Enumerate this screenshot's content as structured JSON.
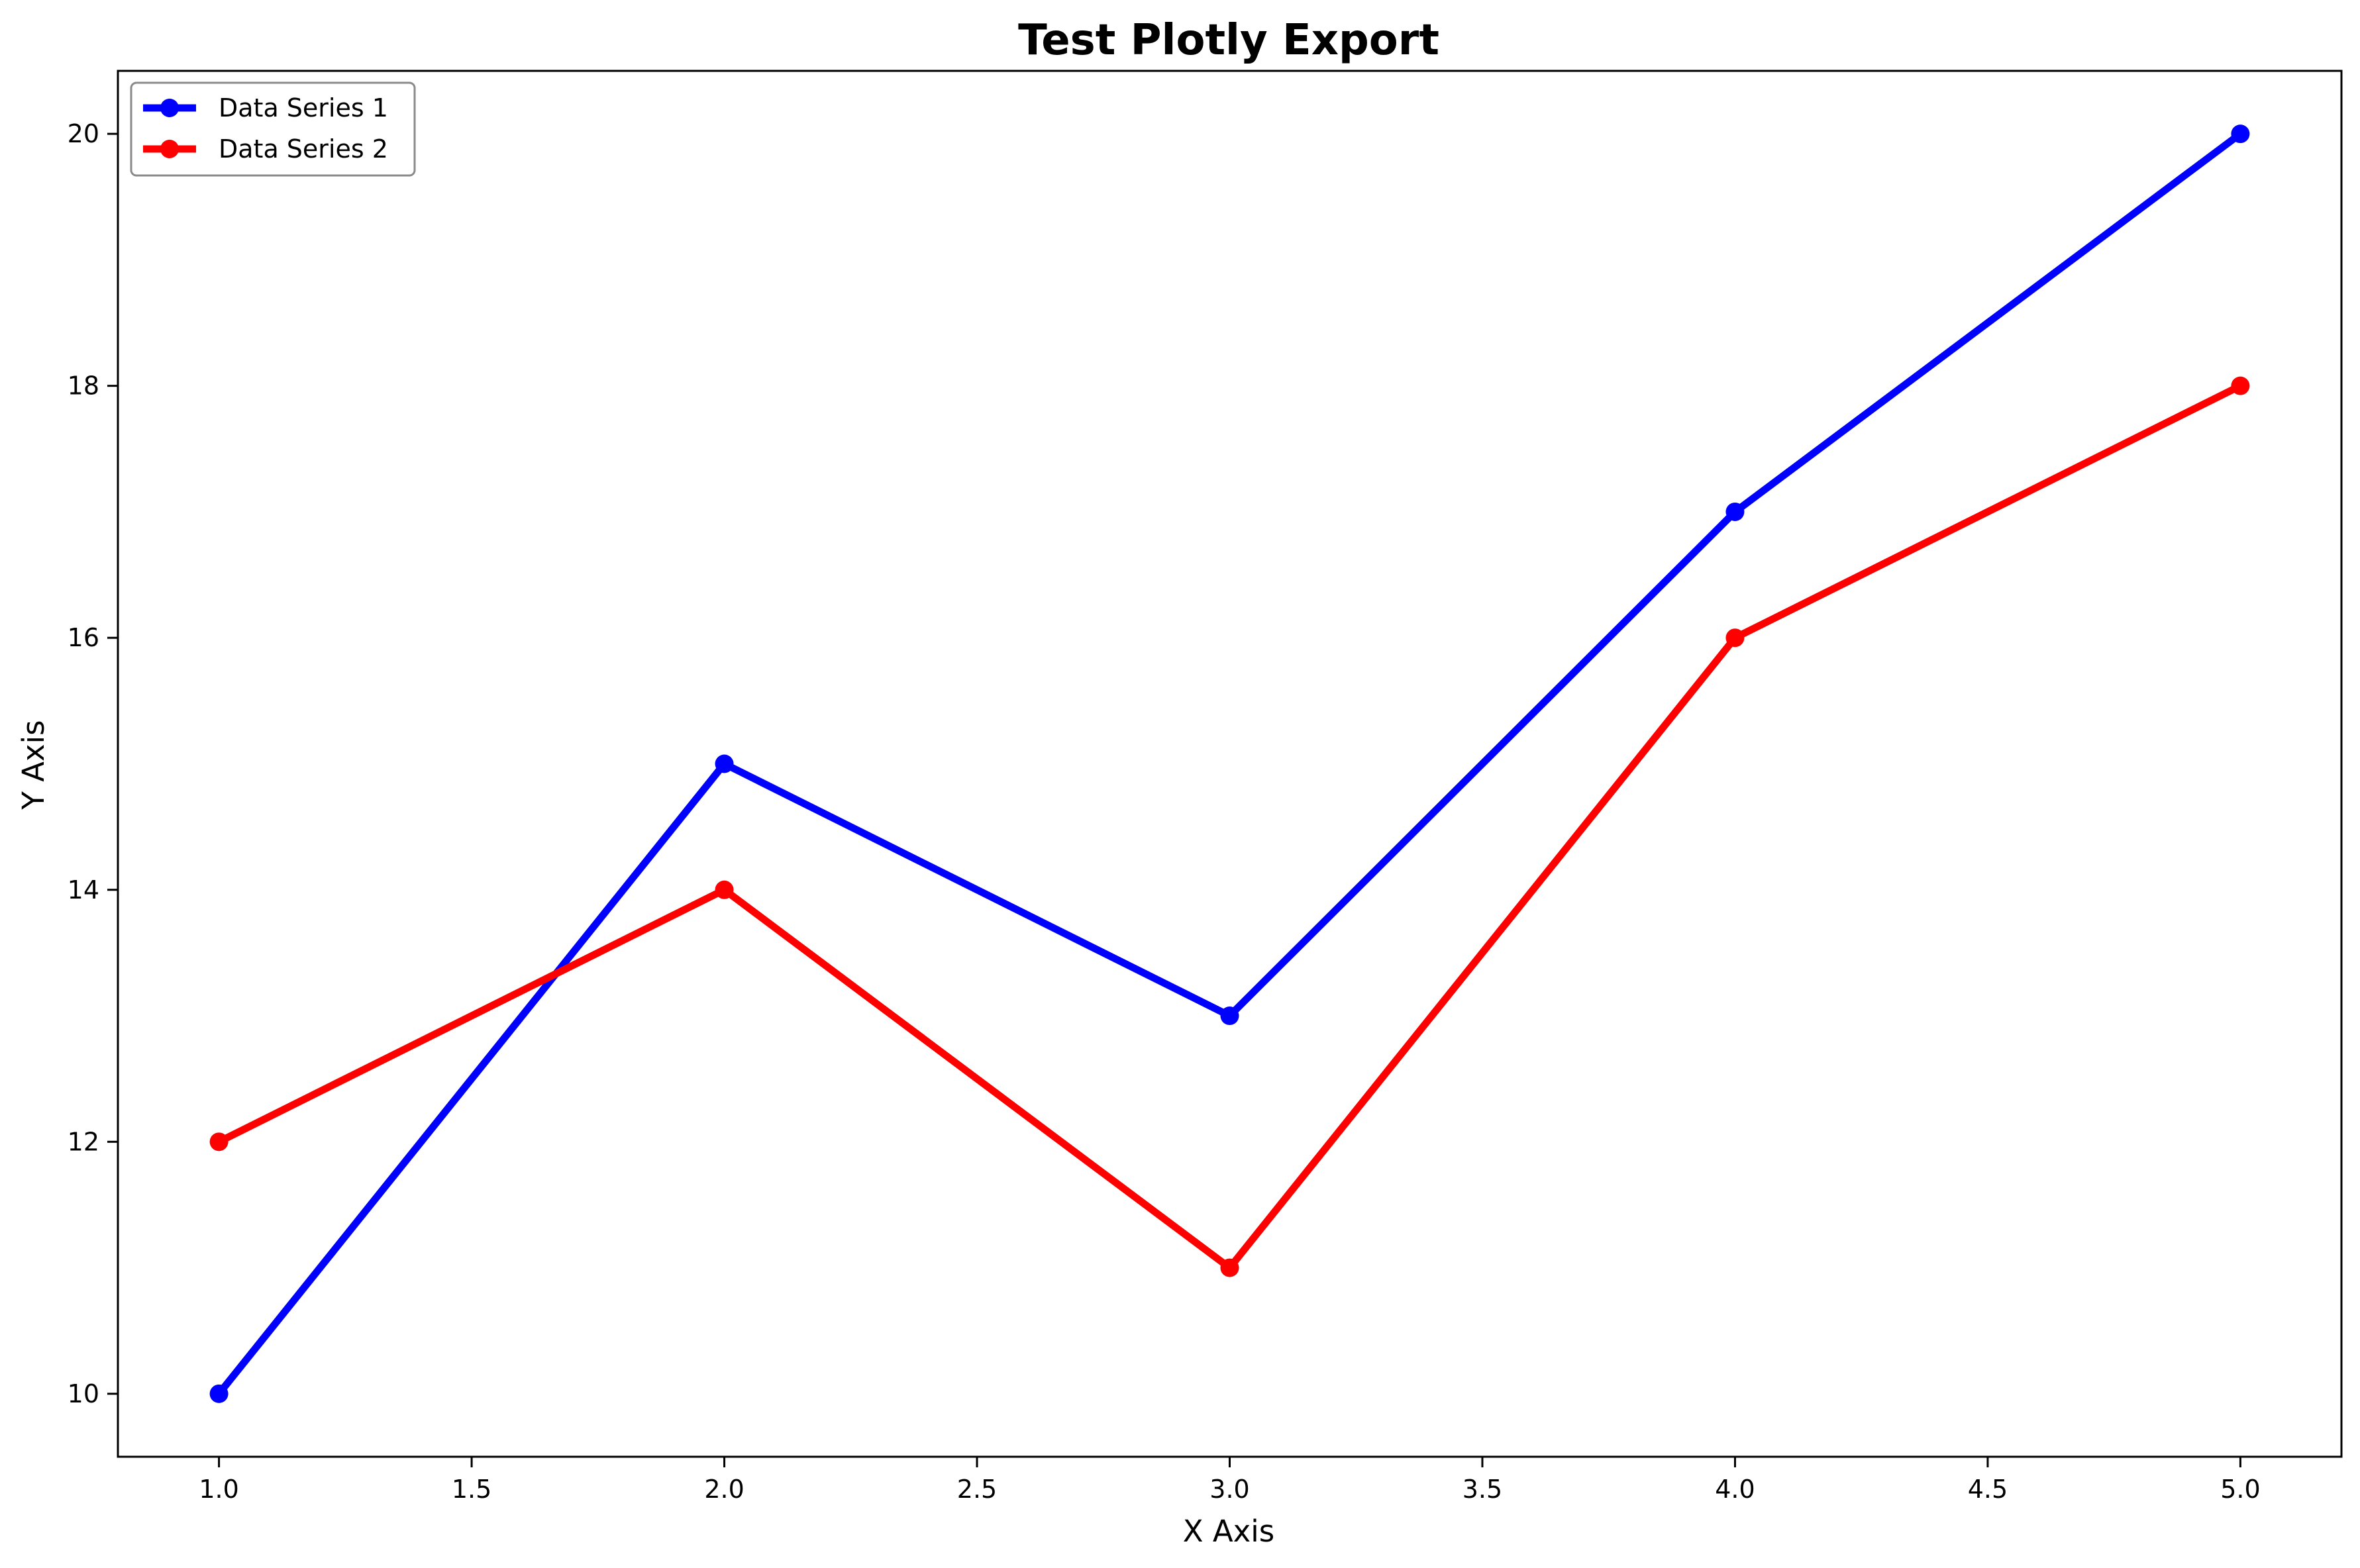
{
  "chart_data": {
    "type": "line",
    "title": "Test Plotly Export",
    "xlabel": "X Axis",
    "ylabel": "Y Axis",
    "xlim": [
      0.8,
      5.2
    ],
    "ylim": [
      9.5,
      20.5
    ],
    "xticks": [
      1.0,
      1.5,
      2.0,
      2.5,
      3.0,
      3.5,
      4.0,
      4.5,
      5.0
    ],
    "xtick_labels": [
      "1.0",
      "1.5",
      "2.0",
      "2.5",
      "3.0",
      "3.5",
      "4.0",
      "4.5",
      "5.0"
    ],
    "yticks": [
      10,
      12,
      14,
      16,
      18,
      20
    ],
    "ytick_labels": [
      "10",
      "12",
      "14",
      "16",
      "18",
      "20"
    ],
    "x": [
      1,
      2,
      3,
      4,
      5
    ],
    "series": [
      {
        "name": "Data Series 1",
        "color": "#0000ff",
        "values": [
          10,
          15,
          13,
          17,
          20
        ]
      },
      {
        "name": "Data Series 2",
        "color": "#ff0000",
        "values": [
          12,
          14,
          11,
          16,
          18
        ]
      }
    ],
    "grid": false,
    "legend_position": "top-left"
  }
}
